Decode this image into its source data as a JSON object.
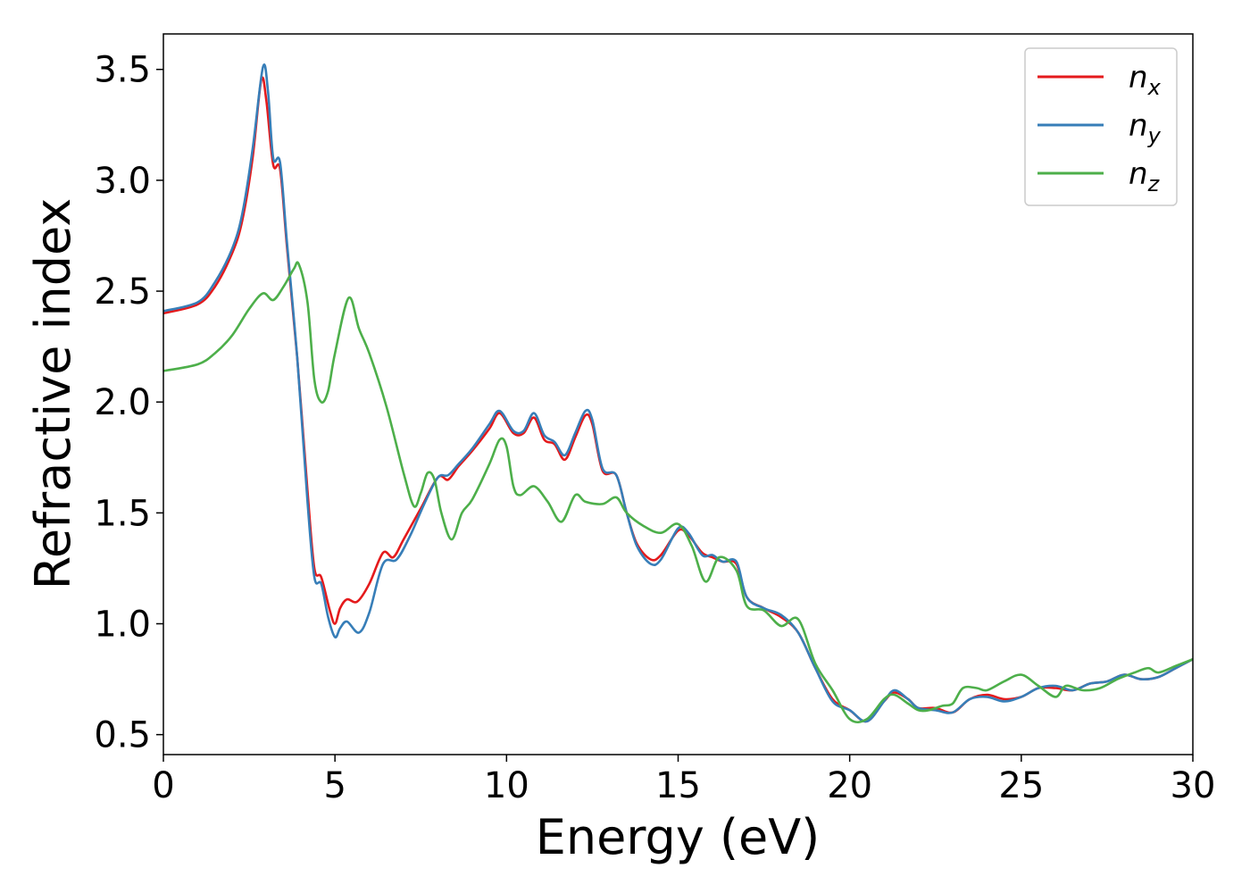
{
  "chart_data": {
    "type": "line",
    "xlabel": "Energy (eV)",
    "ylabel": "Refractive index",
    "xlim": [
      0,
      30
    ],
    "ylim": [
      0.41,
      3.66
    ],
    "xticks": [
      "0",
      "5",
      "10",
      "15",
      "20",
      "25",
      "30"
    ],
    "yticks": [
      "0.5",
      "1.0",
      "1.5",
      "2.0",
      "2.5",
      "3.0",
      "3.5"
    ],
    "grid": false,
    "legend_position": "top-right",
    "series": [
      {
        "name": "n",
        "subscript": "x",
        "color": "#e41a1c",
        "points": [
          [
            0,
            2.4
          ],
          [
            1,
            2.44
          ],
          [
            1.5,
            2.52
          ],
          [
            2,
            2.67
          ],
          [
            2.3,
            2.82
          ],
          [
            2.6,
            3.1
          ],
          [
            2.85,
            3.45
          ],
          [
            3.0,
            3.36
          ],
          [
            3.2,
            3.07
          ],
          [
            3.4,
            3.05
          ],
          [
            3.6,
            2.7
          ],
          [
            3.9,
            2.2
          ],
          [
            4.2,
            1.6
          ],
          [
            4.4,
            1.25
          ],
          [
            4.6,
            1.21
          ],
          [
            4.85,
            1.06
          ],
          [
            5.0,
            1.0
          ],
          [
            5.15,
            1.07
          ],
          [
            5.35,
            1.11
          ],
          [
            5.65,
            1.1
          ],
          [
            6.0,
            1.18
          ],
          [
            6.4,
            1.32
          ],
          [
            6.7,
            1.3
          ],
          [
            7.0,
            1.38
          ],
          [
            7.5,
            1.52
          ],
          [
            8.0,
            1.66
          ],
          [
            8.3,
            1.65
          ],
          [
            8.6,
            1.71
          ],
          [
            9.0,
            1.78
          ],
          [
            9.5,
            1.88
          ],
          [
            9.8,
            1.95
          ],
          [
            10.2,
            1.86
          ],
          [
            10.5,
            1.86
          ],
          [
            10.8,
            1.93
          ],
          [
            11.1,
            1.83
          ],
          [
            11.4,
            1.81
          ],
          [
            11.7,
            1.74
          ],
          [
            12.0,
            1.84
          ],
          [
            12.3,
            1.94
          ],
          [
            12.5,
            1.9
          ],
          [
            12.8,
            1.69
          ],
          [
            13.2,
            1.67
          ],
          [
            13.5,
            1.5
          ],
          [
            13.8,
            1.36
          ],
          [
            14.2,
            1.29
          ],
          [
            14.5,
            1.31
          ],
          [
            15.0,
            1.42
          ],
          [
            15.3,
            1.4
          ],
          [
            15.7,
            1.32
          ],
          [
            16.0,
            1.3
          ],
          [
            16.3,
            1.28
          ],
          [
            16.7,
            1.27
          ],
          [
            17.0,
            1.12
          ],
          [
            17.5,
            1.07
          ],
          [
            18.0,
            1.03
          ],
          [
            18.5,
            0.96
          ],
          [
            19.0,
            0.8
          ],
          [
            19.5,
            0.66
          ],
          [
            20.0,
            0.61
          ],
          [
            20.5,
            0.56
          ],
          [
            21.0,
            0.65
          ],
          [
            21.3,
            0.69
          ],
          [
            21.7,
            0.66
          ],
          [
            22.0,
            0.62
          ],
          [
            22.5,
            0.62
          ],
          [
            23.0,
            0.6
          ],
          [
            23.5,
            0.66
          ],
          [
            24.0,
            0.68
          ],
          [
            24.5,
            0.66
          ],
          [
            25.0,
            0.67
          ],
          [
            25.5,
            0.71
          ],
          [
            26.0,
            0.71
          ],
          [
            26.5,
            0.7
          ],
          [
            27.0,
            0.73
          ],
          [
            27.5,
            0.74
          ],
          [
            28.0,
            0.77
          ],
          [
            28.5,
            0.75
          ],
          [
            29.0,
            0.76
          ],
          [
            29.5,
            0.8
          ],
          [
            30.0,
            0.84
          ]
        ]
      },
      {
        "name": "n",
        "subscript": "y",
        "color": "#377eb8",
        "points": [
          [
            0,
            2.41
          ],
          [
            1,
            2.45
          ],
          [
            1.5,
            2.54
          ],
          [
            2,
            2.69
          ],
          [
            2.3,
            2.85
          ],
          [
            2.6,
            3.14
          ],
          [
            2.9,
            3.51
          ],
          [
            3.05,
            3.4
          ],
          [
            3.2,
            3.1
          ],
          [
            3.4,
            3.08
          ],
          [
            3.6,
            2.72
          ],
          [
            3.9,
            2.2
          ],
          [
            4.2,
            1.55
          ],
          [
            4.4,
            1.21
          ],
          [
            4.6,
            1.18
          ],
          [
            4.8,
            1.03
          ],
          [
            5.0,
            0.94
          ],
          [
            5.15,
            0.98
          ],
          [
            5.35,
            1.01
          ],
          [
            5.7,
            0.96
          ],
          [
            6.0,
            1.05
          ],
          [
            6.4,
            1.27
          ],
          [
            6.8,
            1.29
          ],
          [
            7.2,
            1.4
          ],
          [
            7.6,
            1.54
          ],
          [
            8.0,
            1.66
          ],
          [
            8.3,
            1.67
          ],
          [
            8.6,
            1.72
          ],
          [
            9.0,
            1.79
          ],
          [
            9.5,
            1.9
          ],
          [
            9.8,
            1.96
          ],
          [
            10.2,
            1.87
          ],
          [
            10.5,
            1.87
          ],
          [
            10.8,
            1.95
          ],
          [
            11.1,
            1.85
          ],
          [
            11.4,
            1.82
          ],
          [
            11.7,
            1.76
          ],
          [
            12.0,
            1.86
          ],
          [
            12.3,
            1.96
          ],
          [
            12.5,
            1.92
          ],
          [
            12.8,
            1.7
          ],
          [
            13.2,
            1.67
          ],
          [
            13.5,
            1.5
          ],
          [
            13.8,
            1.35
          ],
          [
            14.2,
            1.27
          ],
          [
            14.5,
            1.29
          ],
          [
            15.0,
            1.43
          ],
          [
            15.3,
            1.41
          ],
          [
            15.7,
            1.31
          ],
          [
            16.0,
            1.31
          ],
          [
            16.3,
            1.28
          ],
          [
            16.7,
            1.28
          ],
          [
            17.0,
            1.12
          ],
          [
            17.5,
            1.07
          ],
          [
            18.0,
            1.04
          ],
          [
            18.5,
            0.96
          ],
          [
            19.0,
            0.8
          ],
          [
            19.5,
            0.65
          ],
          [
            20.0,
            0.61
          ],
          [
            20.5,
            0.56
          ],
          [
            21.0,
            0.65
          ],
          [
            21.3,
            0.7
          ],
          [
            21.7,
            0.66
          ],
          [
            22.0,
            0.62
          ],
          [
            22.5,
            0.61
          ],
          [
            23.0,
            0.6
          ],
          [
            23.5,
            0.66
          ],
          [
            24.0,
            0.67
          ],
          [
            24.5,
            0.65
          ],
          [
            25.0,
            0.67
          ],
          [
            25.5,
            0.71
          ],
          [
            26.0,
            0.72
          ],
          [
            26.5,
            0.7
          ],
          [
            27.0,
            0.73
          ],
          [
            27.5,
            0.74
          ],
          [
            28.0,
            0.77
          ],
          [
            28.5,
            0.75
          ],
          [
            29.0,
            0.76
          ],
          [
            29.5,
            0.8
          ],
          [
            30.0,
            0.84
          ]
        ]
      },
      {
        "name": "n",
        "subscript": "z",
        "color": "#4daf4a",
        "points": [
          [
            0,
            2.14
          ],
          [
            1,
            2.17
          ],
          [
            1.5,
            2.22
          ],
          [
            2,
            2.3
          ],
          [
            2.5,
            2.42
          ],
          [
            2.9,
            2.49
          ],
          [
            3.2,
            2.46
          ],
          [
            3.5,
            2.52
          ],
          [
            3.8,
            2.6
          ],
          [
            3.95,
            2.62
          ],
          [
            4.2,
            2.45
          ],
          [
            4.4,
            2.1
          ],
          [
            4.6,
            2.0
          ],
          [
            4.8,
            2.05
          ],
          [
            5.0,
            2.22
          ],
          [
            5.4,
            2.47
          ],
          [
            5.7,
            2.33
          ],
          [
            6.0,
            2.22
          ],
          [
            6.5,
            1.98
          ],
          [
            7.0,
            1.68
          ],
          [
            7.3,
            1.53
          ],
          [
            7.5,
            1.59
          ],
          [
            7.7,
            1.68
          ],
          [
            7.9,
            1.65
          ],
          [
            8.1,
            1.5
          ],
          [
            8.4,
            1.38
          ],
          [
            8.7,
            1.5
          ],
          [
            9.0,
            1.56
          ],
          [
            9.5,
            1.72
          ],
          [
            9.8,
            1.83
          ],
          [
            10.0,
            1.8
          ],
          [
            10.2,
            1.62
          ],
          [
            10.4,
            1.58
          ],
          [
            10.8,
            1.62
          ],
          [
            11.2,
            1.55
          ],
          [
            11.6,
            1.46
          ],
          [
            12.0,
            1.58
          ],
          [
            12.3,
            1.55
          ],
          [
            12.8,
            1.54
          ],
          [
            13.2,
            1.57
          ],
          [
            13.5,
            1.5
          ],
          [
            14.0,
            1.44
          ],
          [
            14.5,
            1.41
          ],
          [
            15.0,
            1.45
          ],
          [
            15.4,
            1.35
          ],
          [
            15.8,
            1.19
          ],
          [
            16.2,
            1.3
          ],
          [
            16.7,
            1.24
          ],
          [
            17.0,
            1.08
          ],
          [
            17.5,
            1.06
          ],
          [
            18.0,
            0.99
          ],
          [
            18.5,
            1.02
          ],
          [
            19.0,
            0.82
          ],
          [
            19.5,
            0.7
          ],
          [
            20.0,
            0.57
          ],
          [
            20.5,
            0.57
          ],
          [
            21.0,
            0.66
          ],
          [
            21.3,
            0.68
          ],
          [
            21.7,
            0.64
          ],
          [
            22.0,
            0.61
          ],
          [
            22.3,
            0.61
          ],
          [
            22.7,
            0.63
          ],
          [
            23.0,
            0.64
          ],
          [
            23.3,
            0.71
          ],
          [
            23.7,
            0.71
          ],
          [
            24.0,
            0.7
          ],
          [
            24.5,
            0.74
          ],
          [
            25.0,
            0.77
          ],
          [
            25.5,
            0.72
          ],
          [
            26.0,
            0.67
          ],
          [
            26.3,
            0.72
          ],
          [
            26.8,
            0.7
          ],
          [
            27.3,
            0.71
          ],
          [
            27.8,
            0.75
          ],
          [
            28.3,
            0.78
          ],
          [
            28.7,
            0.8
          ],
          [
            29.0,
            0.78
          ],
          [
            29.5,
            0.81
          ],
          [
            30.0,
            0.84
          ]
        ]
      }
    ]
  }
}
